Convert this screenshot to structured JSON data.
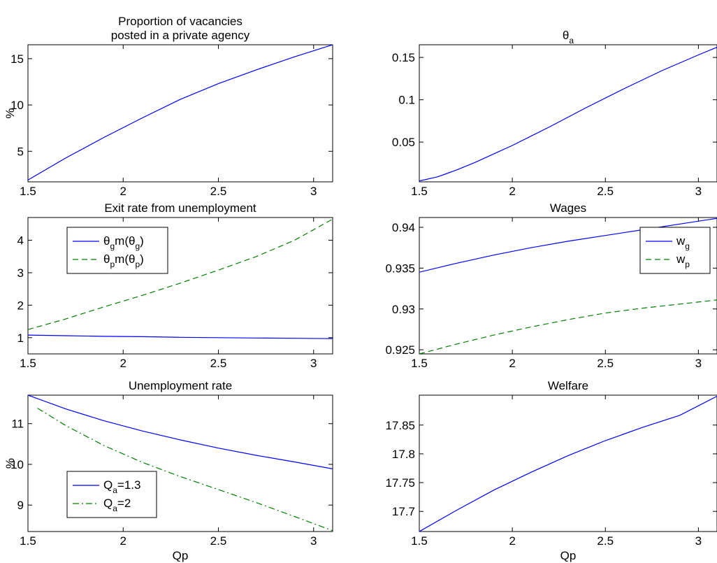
{
  "chart_data": [
    {
      "type": "line",
      "title_lines": [
        "Proportion of vacancies",
        "posted in a private agency"
      ],
      "xlabel": "",
      "ylabel": "%",
      "xlim": [
        1.5,
        3.1
      ],
      "ylim": [
        1.7,
        16.5
      ],
      "xticks": [
        1.5,
        2,
        2.5,
        3
      ],
      "xtick_labels": [
        "1.5",
        "2",
        "2.5",
        "3"
      ],
      "yticks": [
        5,
        10,
        15
      ],
      "ytick_labels": [
        "5",
        "10",
        "15"
      ],
      "grid": false,
      "series": [
        {
          "style": "solid",
          "color": "#0000ff",
          "x": [
            1.5,
            1.7,
            1.9,
            2.1,
            2.3,
            2.5,
            2.7,
            2.9,
            3.1
          ],
          "y": [
            1.9,
            4.3,
            6.5,
            8.6,
            10.6,
            12.3,
            13.8,
            15.2,
            16.5
          ]
        }
      ],
      "legend": []
    },
    {
      "type": "line",
      "title_lines": [
        "θ_a"
      ],
      "xlabel": "",
      "ylabel": "",
      "xlim": [
        1.5,
        3.1
      ],
      "ylim": [
        0.003,
        0.165
      ],
      "xticks": [
        1.5,
        2,
        2.5,
        3
      ],
      "xtick_labels": [
        "1.5",
        "2",
        "2.5",
        "3"
      ],
      "yticks": [
        0.05,
        0.1,
        0.15
      ],
      "ytick_labels": [
        "0.05",
        "0.1",
        "0.15"
      ],
      "grid": false,
      "series": [
        {
          "style": "solid",
          "color": "#0000ff",
          "x": [
            1.5,
            1.6,
            1.7,
            1.8,
            1.9,
            2.0,
            2.2,
            2.4,
            2.6,
            2.8,
            3.0,
            3.1
          ],
          "y": [
            0.004,
            0.009,
            0.017,
            0.026,
            0.036,
            0.046,
            0.068,
            0.091,
            0.113,
            0.134,
            0.153,
            0.162
          ]
        }
      ],
      "legend": []
    },
    {
      "type": "line",
      "title_lines": [
        "Exit rate from unemployment"
      ],
      "xlabel": "",
      "ylabel": "",
      "xlim": [
        1.5,
        3.1
      ],
      "ylim": [
        0.5,
        4.7
      ],
      "xticks": [
        1.5,
        2,
        2.5,
        3
      ],
      "xtick_labels": [
        "1.5",
        "2",
        "2.5",
        "3"
      ],
      "yticks": [
        1,
        2,
        3,
        4
      ],
      "ytick_labels": [
        "1",
        "2",
        "3",
        "4"
      ],
      "grid": false,
      "series": [
        {
          "style": "solid",
          "color": "#0000ff",
          "x": [
            1.5,
            1.7,
            1.9,
            2.1,
            2.3,
            2.5,
            2.7,
            2.9,
            3.1
          ],
          "y": [
            1.08,
            1.06,
            1.04,
            1.03,
            1.01,
            1.0,
            0.99,
            0.98,
            0.97
          ]
        },
        {
          "style": "dashed",
          "color": "#008000",
          "x": [
            1.5,
            1.7,
            1.9,
            2.1,
            2.3,
            2.5,
            2.7,
            2.9,
            3.1
          ],
          "y": [
            1.25,
            1.58,
            1.95,
            2.3,
            2.68,
            3.08,
            3.5,
            4.0,
            4.65
          ]
        }
      ],
      "legend": [
        {
          "main": "θ",
          "parts": [
            [
              "θ",
              ""
            ],
            [
              "g",
              "sub"
            ],
            [
              "m(θ",
              ""
            ],
            [
              "g",
              "sub"
            ],
            [
              ")",
              ""
            ]
          ],
          "style": "solid",
          "color": "#0000ff"
        },
        {
          "main": "θ",
          "parts": [
            [
              "θ",
              ""
            ],
            [
              "p",
              "sub"
            ],
            [
              "m(θ",
              ""
            ],
            [
              "p",
              "sub"
            ],
            [
              ")",
              ""
            ]
          ],
          "style": "dashed",
          "color": "#008000"
        }
      ],
      "legend_loc": "upper-left"
    },
    {
      "type": "line",
      "title_lines": [
        "Wages"
      ],
      "xlabel": "",
      "ylabel": "",
      "xlim": [
        1.5,
        3.1
      ],
      "ylim": [
        0.9245,
        0.9412
      ],
      "xticks": [
        1.5,
        2,
        2.5,
        3
      ],
      "xtick_labels": [
        "1.5",
        "2",
        "2.5",
        "3"
      ],
      "yticks": [
        0.925,
        0.93,
        0.935,
        0.94
      ],
      "ytick_labels": [
        "0.925",
        "0.93",
        "0.935",
        "0.94"
      ],
      "grid": false,
      "series": [
        {
          "style": "solid",
          "color": "#0000ff",
          "x": [
            1.5,
            1.7,
            1.9,
            2.1,
            2.3,
            2.5,
            2.7,
            2.9,
            3.1
          ],
          "y": [
            0.9345,
            0.9356,
            0.9366,
            0.9375,
            0.9383,
            0.939,
            0.9397,
            0.9404,
            0.9411
          ]
        },
        {
          "style": "dashed",
          "color": "#008000",
          "x": [
            1.5,
            1.7,
            1.9,
            2.1,
            2.3,
            2.5,
            2.7,
            2.9,
            3.1
          ],
          "y": [
            0.9245,
            0.9257,
            0.9268,
            0.9278,
            0.9287,
            0.9295,
            0.9301,
            0.9306,
            0.9311
          ]
        }
      ],
      "legend": [
        {
          "parts": [
            [
              "w",
              ""
            ],
            [
              "g",
              "sub"
            ]
          ],
          "style": "solid",
          "color": "#0000ff"
        },
        {
          "parts": [
            [
              "w",
              ""
            ],
            [
              "p",
              "sub"
            ]
          ],
          "style": "dashed",
          "color": "#008000"
        }
      ],
      "legend_loc": "upper-right"
    },
    {
      "type": "line",
      "title_lines": [
        "Unemployment rate"
      ],
      "xlabel": "Qp",
      "ylabel": "%",
      "xlim": [
        1.5,
        3.1
      ],
      "ylim": [
        8.35,
        11.7
      ],
      "xticks": [
        1.5,
        2,
        2.5,
        3
      ],
      "xtick_labels": [
        "1.5",
        "2",
        "2.5",
        "3"
      ],
      "yticks": [
        9,
        10,
        11
      ],
      "ytick_labels": [
        "9",
        "10",
        "11"
      ],
      "grid": false,
      "series": [
        {
          "style": "solid",
          "color": "#0000ff",
          "x": [
            1.5,
            1.7,
            1.9,
            2.1,
            2.3,
            2.5,
            2.7,
            2.9,
            3.1
          ],
          "y": [
            11.7,
            11.36,
            11.07,
            10.82,
            10.6,
            10.4,
            10.22,
            10.06,
            9.89
          ]
        },
        {
          "style": "dashdot",
          "color": "#008000",
          "x": [
            1.55,
            1.7,
            1.9,
            2.1,
            2.3,
            2.5,
            2.7,
            2.9,
            3.1
          ],
          "y": [
            11.38,
            10.95,
            10.46,
            10.05,
            9.7,
            9.38,
            9.06,
            8.72,
            8.37
          ]
        }
      ],
      "legend": [
        {
          "parts": [
            [
              "Q",
              ""
            ],
            [
              "a",
              "sub"
            ],
            [
              "=1.3",
              ""
            ]
          ],
          "style": "solid",
          "color": "#0000ff"
        },
        {
          "parts": [
            [
              "Q",
              ""
            ],
            [
              "a",
              "sub"
            ],
            [
              "=2",
              ""
            ]
          ],
          "style": "dashdot",
          "color": "#008000"
        }
      ],
      "legend_loc": "lower-left"
    },
    {
      "type": "line",
      "title_lines": [
        "Welfare"
      ],
      "xlabel": "Qp",
      "ylabel": "",
      "xlim": [
        1.5,
        3.1
      ],
      "ylim": [
        17.665,
        17.902
      ],
      "xticks": [
        1.5,
        2,
        2.5,
        3
      ],
      "xtick_labels": [
        "1.5",
        "2",
        "2.5",
        "3"
      ],
      "yticks": [
        17.7,
        17.75,
        17.8,
        17.85
      ],
      "ytick_labels": [
        "17.7",
        "17.75",
        "17.8",
        "17.85"
      ],
      "grid": false,
      "series": [
        {
          "style": "solid",
          "color": "#0000ff",
          "x": [
            1.5,
            1.7,
            1.9,
            2.1,
            2.3,
            2.5,
            2.7,
            2.9,
            3.1
          ],
          "y": [
            17.665,
            17.702,
            17.737,
            17.768,
            17.797,
            17.823,
            17.846,
            17.867,
            17.9
          ]
        }
      ],
      "legend": []
    }
  ]
}
